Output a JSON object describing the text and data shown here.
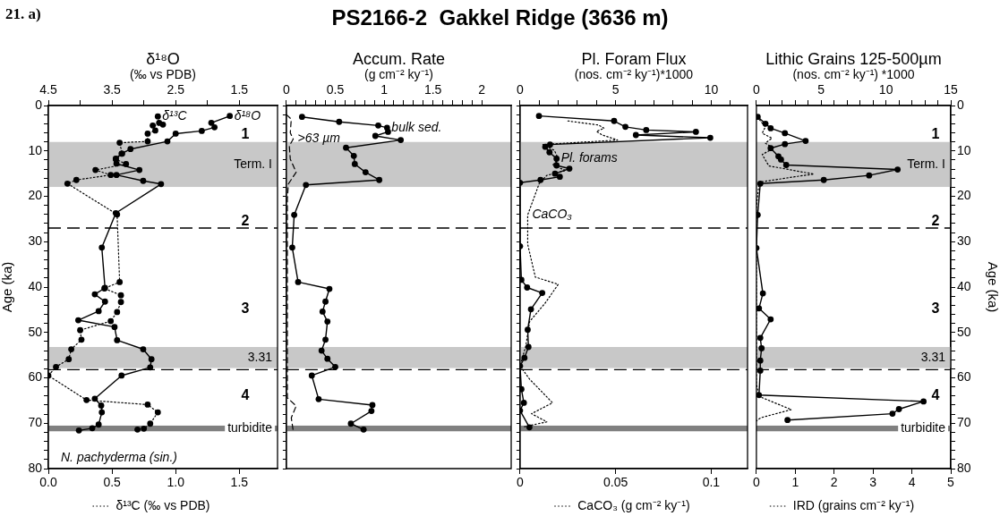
{
  "chart_data": [
    {
      "type": "line",
      "title": "21. a)",
      "subtitle": "N. pachyderma (sin.)",
      "xlabel": "δ¹³C (‰ vs PDB)",
      "x2label": "δ¹⁸O\n(‰ vs PDB)",
      "ylabel": "Age (ka)",
      "xlim": [
        0,
        1.8
      ],
      "xticks": [
        {
          "value": 0,
          "label": "0.0"
        },
        0.5,
        {
          "value": 1,
          "label": "1.0"
        },
        1.5
      ],
      "x2lim": [
        4.5,
        0.9
      ],
      "x2ticks": [
        4.5,
        {
          "value": 4,
          "label": null
        },
        3.5,
        {
          "value": 3,
          "label": null
        },
        2.5,
        {
          "value": 2,
          "label": null
        },
        1.5
      ],
      "ylim": [
        80,
        0
      ],
      "yticks": [
        0,
        {
          "value": 2,
          "label": null
        },
        {
          "value": 4,
          "label": null
        },
        {
          "value": 6,
          "label": null
        },
        {
          "value": 8,
          "label": null
        },
        10,
        {
          "value": 12,
          "label": null
        },
        {
          "value": 14,
          "label": null
        },
        {
          "value": 16,
          "label": null
        },
        {
          "value": 18,
          "label": null
        },
        20,
        {
          "value": 22,
          "label": null
        },
        {
          "value": 24,
          "label": null
        },
        {
          "value": 26,
          "label": null
        },
        {
          "value": 28,
          "label": null
        },
        30,
        {
          "value": 32,
          "label": null
        },
        {
          "value": 34,
          "label": null
        },
        {
          "value": 36,
          "label": null
        },
        {
          "value": 38,
          "label": null
        },
        40,
        {
          "value": 42,
          "label": null
        },
        {
          "value": 44,
          "label": null
        },
        {
          "value": 46,
          "label": null
        },
        {
          "value": 48,
          "label": null
        },
        50,
        {
          "value": 52,
          "label": null
        },
        {
          "value": 54,
          "label": null
        },
        {
          "value": 56,
          "label": null
        },
        {
          "value": 58,
          "label": null
        },
        60,
        {
          "value": 62,
          "label": null
        },
        {
          "value": 64,
          "label": null
        },
        {
          "value": 66,
          "label": null
        },
        {
          "value": 68,
          "label": null
        },
        70,
        {
          "value": 72,
          "label": null
        },
        {
          "value": 74,
          "label": null
        },
        {
          "value": 76,
          "label": null
        },
        {
          "value": 78,
          "label": null
        },
        80
      ],
      "series": [
        {
          "name": "δ¹⁸O",
          "axis": "x2",
          "color": "#000000",
          "line_style": "solid",
          "marker": "circle",
          "x": [
            1.65,
            1.94,
            1.89,
            2.09,
            2.5,
            2.63,
            3.21,
            3.35,
            3.44,
            3.43,
            3.07,
            3.43,
            3.01,
            2.73,
            3.44,
            3.66,
            3.61,
            3.77,
            3.61,
            3.71,
            4.03,
            3.46,
            3.42,
            3.01,
            2.88,
            2.9,
            3.35,
            3.77,
            3.67,
            3.66,
            3.71,
            3.81,
            4.02
          ],
          "values": [
            2.3,
            3.8,
            4.8,
            5.6,
            6.2,
            7.9,
            9.6,
            10.6,
            11.7,
            12.8,
            14.2,
            15.3,
            16.6,
            17.3,
            23.7,
            31.3,
            40.2,
            41.6,
            43.2,
            45.3,
            47.3,
            48.8,
            51.7,
            53.7,
            55.9,
            57.7,
            59.5,
            64.6,
            66.1,
            67.6,
            70.3,
            71.1,
            71.6
          ]
        },
        {
          "name": "δ¹³C",
          "color": "#000000",
          "line_style": "dotted",
          "marker": "circle",
          "x": [
            0.86,
            0.87,
            0.9,
            0.82,
            0.84,
            0.78,
            0.78,
            0.56,
            0.58,
            0.53,
            0.61,
            0.37,
            0.49,
            0.22,
            0.15,
            0.54,
            0.56,
            0.44,
            0.57,
            0.57,
            0.54,
            0.49,
            0.25,
            0.26,
            0.18,
            0.16,
            0.06,
            0,
            0.3,
            0.78,
            0.86,
            0.8,
            0.75,
            0.7
          ],
          "values": [
            2.4,
            3.8,
            4.2,
            4.4,
            5.5,
            6.2,
            7.9,
            8.2,
            10.6,
            11.8,
            12.9,
            14.2,
            15.3,
            16.4,
            17.2,
            24,
            38.9,
            40.3,
            41.8,
            43.3,
            45.5,
            47.5,
            49.5,
            51.6,
            53.7,
            55.9,
            57.6,
            59.5,
            64.9,
            65.9,
            67.6,
            70.1,
            71.2,
            71.4
          ]
        }
      ],
      "bands": [
        {
          "axis": "y",
          "from": 8,
          "to": 18,
          "label": "Term. I",
          "color": "#c8c8c8"
        },
        {
          "axis": "y",
          "from": 53.2,
          "to": 57.9,
          "label": "3.31",
          "color": "#c8c8c8"
        },
        {
          "axis": "y",
          "from": 70.5,
          "to": 71.8,
          "label": "turbidite",
          "color": "#808080"
        }
      ],
      "ref_lines": [
        {
          "axis": "y",
          "value": 27,
          "line_style": "dashed"
        },
        {
          "axis": "y",
          "value": 58.2,
          "line_style": "dashed"
        }
      ],
      "annotations": [
        "1",
        "2",
        "3",
        "4"
      ]
    },
    {
      "type": "line",
      "title": "PS2166-2  Gakkel Ridge (3636 m)",
      "xlabel": "Accum. Rate\n(g cm⁻² ky⁻¹)",
      "tick_labels": "x",
      "xlim": [
        0,
        2.3
      ],
      "xticks": [
        0,
        {
          "value": 0.1,
          "label": null
        },
        {
          "value": 0.2,
          "label": null
        },
        {
          "value": 0.3,
          "label": null
        },
        {
          "value": 0.4,
          "label": null
        },
        0.5,
        {
          "value": 0.6,
          "label": null
        },
        {
          "value": 0.7,
          "label": null
        },
        {
          "value": 0.8,
          "label": null
        },
        {
          "value": 0.9,
          "label": null
        },
        1,
        {
          "value": 1.1,
          "label": null
        },
        {
          "value": 1.2,
          "label": null
        },
        {
          "value": 1.3,
          "label": null
        },
        {
          "value": 1.4,
          "label": null
        },
        1.5,
        {
          "value": 1.6,
          "label": null
        },
        {
          "value": 1.7,
          "label": null
        },
        {
          "value": 1.8,
          "label": null
        },
        {
          "value": 1.9,
          "label": null
        },
        2
      ],
      "ylim": [
        80,
        0
      ],
      "yticks": [
        0,
        {
          "value": 2,
          "label": null
        },
        {
          "value": 4,
          "label": null
        },
        {
          "value": 6,
          "label": null
        },
        {
          "value": 8,
          "label": null
        },
        10,
        {
          "value": 12,
          "label": null
        },
        {
          "value": 14,
          "label": null
        },
        {
          "value": 16,
          "label": null
        },
        {
          "value": 18,
          "label": null
        },
        20,
        {
          "value": 22,
          "label": null
        },
        {
          "value": 24,
          "label": null
        },
        {
          "value": 26,
          "label": null
        },
        {
          "value": 28,
          "label": null
        },
        30,
        {
          "value": 32,
          "label": null
        },
        {
          "value": 34,
          "label": null
        },
        {
          "value": 36,
          "label": null
        },
        {
          "value": 38,
          "label": null
        },
        40,
        {
          "value": 42,
          "label": null
        },
        {
          "value": 44,
          "label": null
        },
        {
          "value": 46,
          "label": null
        },
        {
          "value": 48,
          "label": null
        },
        50,
        {
          "value": 52,
          "label": null
        },
        {
          "value": 54,
          "label": null
        },
        {
          "value": 56,
          "label": null
        },
        {
          "value": 58,
          "label": null
        },
        60,
        {
          "value": 62,
          "label": null
        },
        {
          "value": 64,
          "label": null
        },
        {
          "value": 66,
          "label": null
        },
        {
          "value": 68,
          "label": null
        },
        70,
        {
          "value": 72,
          "label": null
        },
        {
          "value": 74,
          "label": null
        },
        {
          "value": 76,
          "label": null
        },
        {
          "value": 78,
          "label": null
        },
        80
      ],
      "series": [
        {
          "name": "bulk sed.",
          "color": "#000000",
          "line_style": "solid",
          "marker": "circle",
          "x": [
            0.16,
            0.54,
            0.94,
            1.03,
            1.04,
            0.91,
            1.17,
            0.61,
            0.69,
            0.7,
            0.81,
            0.95,
            0.2,
            0.08,
            0.06,
            0.12,
            0.44,
            0.4,
            0.37,
            0.42,
            0.4,
            0.36,
            0.42,
            0.5,
            0.26,
            0.33,
            0.88,
            0.87,
            0.66,
            0.79
          ],
          "values": [
            2.5,
            3.6,
            4.4,
            4.9,
            5.8,
            6.7,
            7.6,
            9.3,
            11.1,
            12.9,
            14.7,
            16.4,
            17.5,
            24.1,
            31.3,
            38.9,
            40.4,
            43.2,
            45.4,
            47.6,
            51.6,
            54,
            55.8,
            57.6,
            59.5,
            64.7,
            66,
            67.3,
            70.1,
            71.4
          ]
        },
        {
          "name": ">63 µm",
          "color": "#000000",
          "line_style": "dashed",
          "marker": "none",
          "x": [
            0,
            0.05,
            0.04,
            0.07,
            0.03,
            0.04,
            0.1,
            0.02,
            0.01,
            0.01,
            0.1,
            0.05,
            0.07
          ],
          "values": [
            2,
            3,
            6,
            7.4,
            8.9,
            11.8,
            14.7,
            17.3,
            20.6,
            64.4,
            66.2,
            68.8,
            71.7
          ]
        }
      ],
      "bands": [
        {
          "axis": "y",
          "from": 8,
          "to": 18,
          "color": "#c8c8c8"
        },
        {
          "axis": "y",
          "from": 53.2,
          "to": 57.9,
          "color": "#c8c8c8"
        },
        {
          "axis": "y",
          "from": 70.5,
          "to": 71.8,
          "color": "#808080"
        }
      ],
      "ref_lines": [
        {
          "axis": "y",
          "value": 27,
          "line_style": "dashed"
        },
        {
          "axis": "y",
          "value": 58.2,
          "line_style": "dashed"
        }
      ]
    },
    {
      "type": "line",
      "xlabel": "CaCO₃ (g cm⁻² ky⁻¹)",
      "x2label": "Pl. Foram Flux\n(nos. cm⁻² ky⁻¹)*1000",
      "tick_labels": "x",
      "xlim": [
        0,
        0.119
      ],
      "xticks": [
        0,
        0.05,
        0.1
      ],
      "x2lim": [
        0,
        11.9
      ],
      "x2ticks": [
        0,
        {
          "value": 1,
          "label": null
        },
        {
          "value": 2,
          "label": null
        },
        {
          "value": 3,
          "label": null
        },
        {
          "value": 4,
          "label": null
        },
        5,
        {
          "value": 6,
          "label": null
        },
        {
          "value": 7,
          "label": null
        },
        {
          "value": 8,
          "label": null
        },
        {
          "value": 9,
          "label": null
        },
        10,
        {
          "value": 11,
          "label": null
        }
      ],
      "ylim": [
        80,
        0
      ],
      "yticks": [
        0,
        {
          "value": 2,
          "label": null
        },
        {
          "value": 4,
          "label": null
        },
        {
          "value": 6,
          "label": null
        },
        {
          "value": 8,
          "label": null
        },
        10,
        {
          "value": 12,
          "label": null
        },
        {
          "value": 14,
          "label": null
        },
        {
          "value": 16,
          "label": null
        },
        {
          "value": 18,
          "label": null
        },
        20,
        {
          "value": 22,
          "label": null
        },
        {
          "value": 24,
          "label": null
        },
        {
          "value": 26,
          "label": null
        },
        {
          "value": 28,
          "label": null
        },
        30,
        {
          "value": 32,
          "label": null
        },
        {
          "value": 34,
          "label": null
        },
        {
          "value": 36,
          "label": null
        },
        {
          "value": 38,
          "label": null
        },
        40,
        {
          "value": 42,
          "label": null
        },
        {
          "value": 44,
          "label": null
        },
        {
          "value": 46,
          "label": null
        },
        {
          "value": 48,
          "label": null
        },
        50,
        {
          "value": 52,
          "label": null
        },
        {
          "value": 54,
          "label": null
        },
        {
          "value": 56,
          "label": null
        },
        {
          "value": 58,
          "label": null
        },
        60,
        {
          "value": 62,
          "label": null
        },
        {
          "value": 64,
          "label": null
        },
        {
          "value": 66,
          "label": null
        },
        {
          "value": 68,
          "label": null
        },
        70,
        {
          "value": 72,
          "label": null
        },
        {
          "value": 74,
          "label": null
        },
        {
          "value": 76,
          "label": null
        },
        {
          "value": 78,
          "label": null
        },
        80
      ],
      "series": [
        {
          "name": "Pl. forams",
          "axis": "x2",
          "color": "#000000",
          "line_style": "solid",
          "marker": "circle",
          "x": [
            0.99,
            4.92,
            5.51,
            6.6,
            9.2,
            6.06,
            9.95,
            1.57,
            1.32,
            1.54,
            1.91,
            1.91,
            2.58,
            1.83,
            2.08,
            1.07,
            0,
            0,
            0.07,
            0.37,
            1.16,
            0.57,
            0.4,
            0.44,
            0.23,
            0,
            0.07,
            0.2,
            0,
            0.49
          ],
          "values": [
            2.3,
            3.4,
            4.7,
            5.4,
            5.8,
            6.5,
            7.1,
            8.6,
            9.1,
            10.3,
            11.7,
            13.2,
            13.9,
            15,
            15.7,
            16.4,
            17,
            31,
            38.4,
            40.1,
            41.3,
            44.9,
            49.4,
            53.2,
            55.6,
            57.4,
            62.5,
            65.5,
            67.2,
            70.9
          ]
        },
        {
          "name": "CaCO₃",
          "color": "#000000",
          "line_style": "dotted",
          "marker": "none",
          "x": [
            0.025,
            0.041,
            0.044,
            0.04,
            0.043,
            0.051,
            0.012,
            0.018,
            0.02,
            0.017,
            0.024,
            0.014,
            0.01,
            0.004,
            0.004,
            0.008,
            0.02,
            0.013,
            0.005,
            0.003,
            0,
            0.005,
            0.017,
            0.006,
            0.014,
            0.002
          ],
          "values": [
            3.4,
            4.3,
            5,
            5.7,
            6.5,
            7.6,
            8.6,
            9.9,
            11.7,
            13.2,
            14.3,
            15.4,
            17.2,
            24.1,
            30.6,
            37.8,
            39.4,
            43.6,
            47.6,
            53,
            57.4,
            60.3,
            65.5,
            67.9,
            69.7,
            70.8
          ]
        }
      ],
      "bands": [
        {
          "axis": "y",
          "from": 8,
          "to": 18,
          "color": "#c8c8c8"
        },
        {
          "axis": "y",
          "from": 53.2,
          "to": 57.9,
          "color": "#c8c8c8"
        },
        {
          "axis": "y",
          "from": 70.5,
          "to": 71.8,
          "color": "#808080"
        }
      ],
      "ref_lines": [
        {
          "axis": "y",
          "value": 27,
          "line_style": "dashed"
        },
        {
          "axis": "y",
          "value": 58.2,
          "line_style": "dashed"
        }
      ]
    },
    {
      "type": "line",
      "xlabel": "IRD (grains cm⁻² ky⁻¹)",
      "x2label": "Lithic Grains 125-500µm\n(nos. cm⁻² ky⁻¹) *1000",
      "ylabel": "Age (ka)",
      "xlim": [
        0,
        5
      ],
      "xticks": [
        0,
        1,
        2,
        3,
        4,
        5
      ],
      "x2lim": [
        0,
        15
      ],
      "x2ticks": [
        0,
        {
          "value": 1,
          "label": null
        },
        {
          "value": 2,
          "label": null
        },
        {
          "value": 3,
          "label": null
        },
        {
          "value": 4,
          "label": null
        },
        5,
        {
          "value": 6,
          "label": null
        },
        {
          "value": 7,
          "label": null
        },
        {
          "value": 8,
          "label": null
        },
        {
          "value": 9,
          "label": null
        },
        10,
        {
          "value": 11,
          "label": null
        },
        {
          "value": 12,
          "label": null
        },
        {
          "value": 13,
          "label": null
        },
        {
          "value": 14,
          "label": null
        },
        15
      ],
      "ylim": [
        80,
        0
      ],
      "yticks": [
        0,
        {
          "value": 2,
          "label": null
        },
        {
          "value": 4,
          "label": null
        },
        {
          "value": 6,
          "label": null
        },
        {
          "value": 8,
          "label": null
        },
        10,
        {
          "value": 12,
          "label": null
        },
        {
          "value": 14,
          "label": null
        },
        {
          "value": 16,
          "label": null
        },
        {
          "value": 18,
          "label": null
        },
        20,
        {
          "value": 22,
          "label": null
        },
        {
          "value": 24,
          "label": null
        },
        {
          "value": 26,
          "label": null
        },
        {
          "value": 28,
          "label": null
        },
        30,
        {
          "value": 32,
          "label": null
        },
        {
          "value": 34,
          "label": null
        },
        {
          "value": 36,
          "label": null
        },
        {
          "value": 38,
          "label": null
        },
        40,
        {
          "value": 42,
          "label": null
        },
        {
          "value": 44,
          "label": null
        },
        {
          "value": 46,
          "label": null
        },
        {
          "value": 48,
          "label": null
        },
        50,
        {
          "value": 52,
          "label": null
        },
        {
          "value": 54,
          "label": null
        },
        {
          "value": 56,
          "label": null
        },
        {
          "value": 58,
          "label": null
        },
        60,
        {
          "value": 62,
          "label": null
        },
        {
          "value": 64,
          "label": null
        },
        {
          "value": 66,
          "label": null
        },
        {
          "value": 68,
          "label": null
        },
        70,
        {
          "value": 72,
          "label": null
        },
        {
          "value": 74,
          "label": null
        },
        {
          "value": 76,
          "label": null
        },
        {
          "value": 78,
          "label": null
        },
        80
      ],
      "series": [
        {
          "axis": "x2",
          "color": "#000000",
          "line_style": "solid",
          "marker": "circle",
          "x": [
            0.1,
            0.7,
            1.1,
            2.2,
            3.8,
            2.2,
            1.1,
            1.7,
            1.9,
            2.3,
            10.9,
            8.7,
            5.2,
            0.3,
            0.1,
            0,
            0.5,
            0.2,
            1.1,
            0.3,
            0.4,
            0.3,
            0.3,
            0.2,
            12.9,
            11,
            10.5,
            2.4
          ],
          "values": [
            2.5,
            4,
            5,
            6.1,
            7.8,
            8.5,
            9.4,
            11.2,
            11.9,
            13.1,
            14.1,
            15.4,
            16.4,
            17.2,
            24.1,
            31.4,
            41.4,
            44.7,
            47.1,
            51.2,
            53.5,
            56.2,
            58.4,
            63.8,
            65.2,
            66.9,
            67.9,
            69.3
          ]
        },
        {
          "color": "#000000",
          "line_style": "dotted",
          "marker": "none",
          "x": [
            0.02,
            0.23,
            0.15,
            0.4,
            0.23,
            0.44,
            0.15,
            0.32,
            1.02,
            1.48,
            0.98,
            0.07,
            0,
            0,
            0.07,
            0.9,
            0.11,
            0
          ],
          "values": [
            2.5,
            4.7,
            6.1,
            7.2,
            8.3,
            9.4,
            10.8,
            13.3,
            14.4,
            15.1,
            15.7,
            16.9,
            22.3,
            61.3,
            64.1,
            67,
            68.8,
            69.5
          ]
        }
      ],
      "bands": [
        {
          "axis": "y",
          "from": 8,
          "to": 18,
          "label": "Term. I",
          "color": "#c8c8c8"
        },
        {
          "axis": "y",
          "from": 53.2,
          "to": 57.9,
          "label": "3.31",
          "color": "#c8c8c8"
        },
        {
          "axis": "y",
          "from": 70.5,
          "to": 71.8,
          "label": "turbidite",
          "color": "#808080"
        }
      ],
      "ref_lines": [
        {
          "axis": "y",
          "value": 27,
          "line_style": "dashed"
        },
        {
          "axis": "y",
          "value": 58.2,
          "line_style": "dashed"
        }
      ],
      "annotations": [
        "1",
        "2",
        "3",
        "4"
      ]
    }
  ]
}
